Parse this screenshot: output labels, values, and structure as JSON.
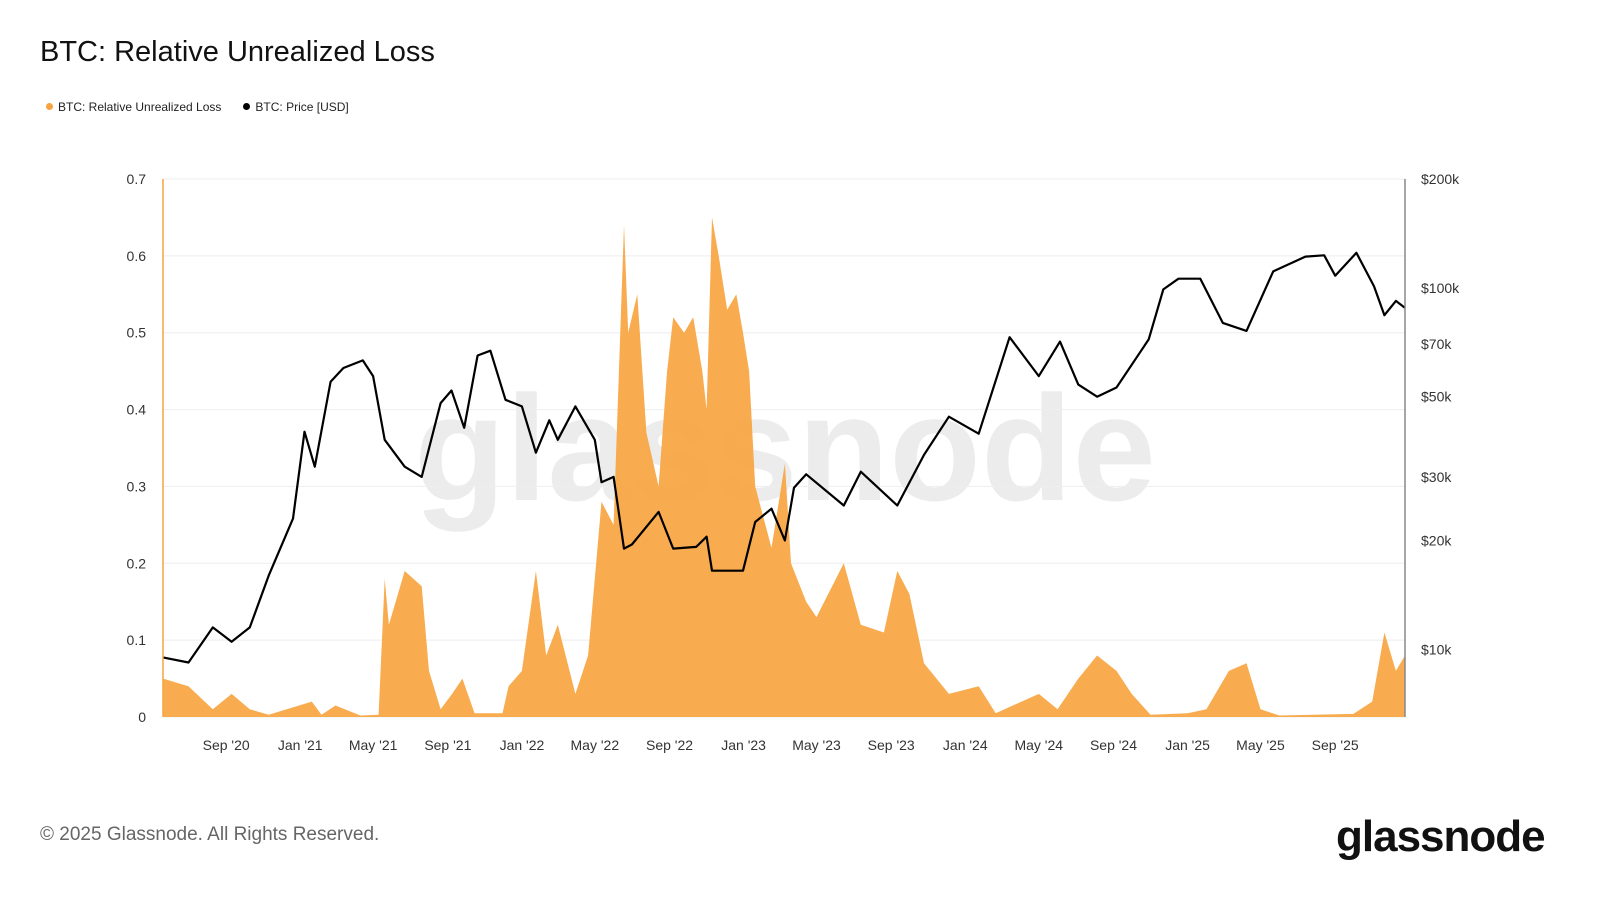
{
  "title": "BTC: Relative Unrealized Loss",
  "footer": "© 2025 Glassnode. All Rights Reserved.",
  "logo": "glassnode",
  "watermark": "glassnode",
  "chart_data": {
    "type": "area+line",
    "title": "BTC: Relative Unrealized Loss",
    "legend_placement": "top-left",
    "grid": true,
    "x_range": [
      "2020-05-20",
      "2025-12-25"
    ],
    "x_ticks": [
      [
        "2020-09-01",
        "Sep '20"
      ],
      [
        "2021-01-01",
        "Jan '21"
      ],
      [
        "2021-05-01",
        "May '21"
      ],
      [
        "2021-09-01",
        "Sep '21"
      ],
      [
        "2022-01-01",
        "Jan '22"
      ],
      [
        "2022-05-01",
        "May '22"
      ],
      [
        "2022-09-01",
        "Sep '22"
      ],
      [
        "2023-01-01",
        "Jan '23"
      ],
      [
        "2023-05-01",
        "May '23"
      ],
      [
        "2023-09-01",
        "Sep '23"
      ],
      [
        "2024-01-01",
        "Jan '24"
      ],
      [
        "2024-05-01",
        "May '24"
      ],
      [
        "2024-09-01",
        "Sep '24"
      ],
      [
        "2025-01-01",
        "Jan '25"
      ],
      [
        "2025-05-01",
        "May '25"
      ],
      [
        "2025-09-01",
        "Sep '25"
      ]
    ],
    "y_left": {
      "range": [
        0,
        0.7
      ],
      "ticks": [
        0,
        0.1,
        0.2,
        0.3,
        0.4,
        0.5,
        0.6,
        0.7
      ],
      "labels": [
        "0",
        "0.1",
        "0.2",
        "0.3",
        "0.4",
        "0.5",
        "0.6",
        "0.7"
      ]
    },
    "y_right": {
      "scale": "log",
      "range": [
        6500,
        200000
      ],
      "ticks": [
        10000,
        20000,
        30000,
        50000,
        70000,
        100000,
        200000
      ],
      "labels": [
        "$10k",
        "$20k",
        "$30k",
        "$50k",
        "$70k",
        "$100k",
        "$200k"
      ]
    },
    "series": [
      {
        "name": "BTC: Relative Unrealized Loss",
        "color": "#f7a440",
        "axis": "left",
        "type": "area",
        "points": [
          [
            "2020-05-20",
            0.05
          ],
          [
            "2020-07-01",
            0.04
          ],
          [
            "2020-08-10",
            0.01
          ],
          [
            "2020-09-10",
            0.03
          ],
          [
            "2020-10-10",
            0.01
          ],
          [
            "2020-11-10",
            0.003
          ],
          [
            "2021-01-20",
            0.02
          ],
          [
            "2021-02-05",
            0.003
          ],
          [
            "2021-02-28",
            0.015
          ],
          [
            "2021-04-10",
            0.002
          ],
          [
            "2021-05-10",
            0.003
          ],
          [
            "2021-05-20",
            0.18
          ],
          [
            "2021-05-27",
            0.12
          ],
          [
            "2021-06-22",
            0.19
          ],
          [
            "2021-07-20",
            0.17
          ],
          [
            "2021-08-01",
            0.06
          ],
          [
            "2021-08-20",
            0.01
          ],
          [
            "2021-09-08",
            0.03
          ],
          [
            "2021-09-25",
            0.05
          ],
          [
            "2021-10-15",
            0.005
          ],
          [
            "2021-11-30",
            0.005
          ],
          [
            "2021-12-10",
            0.04
          ],
          [
            "2022-01-01",
            0.06
          ],
          [
            "2022-01-24",
            0.19
          ],
          [
            "2022-02-10",
            0.08
          ],
          [
            "2022-03-01",
            0.12
          ],
          [
            "2022-03-30",
            0.03
          ],
          [
            "2022-04-20",
            0.08
          ],
          [
            "2022-05-12",
            0.28
          ],
          [
            "2022-06-01",
            0.25
          ],
          [
            "2022-06-18",
            0.64
          ],
          [
            "2022-06-25",
            0.5
          ],
          [
            "2022-07-10",
            0.55
          ],
          [
            "2022-07-25",
            0.37
          ],
          [
            "2022-08-14",
            0.3
          ],
          [
            "2022-08-28",
            0.45
          ],
          [
            "2022-09-07",
            0.52
          ],
          [
            "2022-09-25",
            0.5
          ],
          [
            "2022-10-10",
            0.52
          ],
          [
            "2022-10-25",
            0.45
          ],
          [
            "2022-11-01",
            0.4
          ],
          [
            "2022-11-10",
            0.65
          ],
          [
            "2022-11-21",
            0.6
          ],
          [
            "2022-12-05",
            0.53
          ],
          [
            "2022-12-20",
            0.55
          ],
          [
            "2022-12-31",
            0.5
          ],
          [
            "2023-01-10",
            0.45
          ],
          [
            "2023-01-20",
            0.3
          ],
          [
            "2023-02-16",
            0.22
          ],
          [
            "2023-03-10",
            0.33
          ],
          [
            "2023-03-20",
            0.2
          ],
          [
            "2023-04-14",
            0.15
          ],
          [
            "2023-05-01",
            0.13
          ],
          [
            "2023-06-15",
            0.2
          ],
          [
            "2023-07-13",
            0.12
          ],
          [
            "2023-08-20",
            0.11
          ],
          [
            "2023-09-11",
            0.19
          ],
          [
            "2023-10-01",
            0.16
          ],
          [
            "2023-10-25",
            0.07
          ],
          [
            "2023-12-05",
            0.03
          ],
          [
            "2024-01-23",
            0.04
          ],
          [
            "2024-02-20",
            0.005
          ],
          [
            "2024-05-01",
            0.03
          ],
          [
            "2024-06-01",
            0.01
          ],
          [
            "2024-07-05",
            0.05
          ],
          [
            "2024-08-05",
            0.08
          ],
          [
            "2024-09-06",
            0.06
          ],
          [
            "2024-10-01",
            0.03
          ],
          [
            "2024-11-01",
            0.003
          ],
          [
            "2025-01-01",
            0.005
          ],
          [
            "2025-02-01",
            0.01
          ],
          [
            "2025-03-10",
            0.06
          ],
          [
            "2025-04-08",
            0.07
          ],
          [
            "2025-05-01",
            0.01
          ],
          [
            "2025-06-01",
            0.002
          ],
          [
            "2025-10-01",
            0.004
          ],
          [
            "2025-11-01",
            0.02
          ],
          [
            "2025-11-21",
            0.11
          ],
          [
            "2025-12-10",
            0.06
          ],
          [
            "2025-12-25",
            0.08
          ]
        ]
      },
      {
        "name": "BTC: Price [USD]",
        "color": "#000000",
        "axis": "right",
        "type": "line",
        "points": [
          [
            "2020-05-20",
            9500
          ],
          [
            "2020-07-01",
            9200
          ],
          [
            "2020-08-10",
            11500
          ],
          [
            "2020-09-10",
            10500
          ],
          [
            "2020-10-10",
            11500
          ],
          [
            "2020-11-10",
            16000
          ],
          [
            "2020-12-20",
            23000
          ],
          [
            "2021-01-08",
            40000
          ],
          [
            "2021-01-25",
            32000
          ],
          [
            "2021-02-20",
            55000
          ],
          [
            "2021-03-13",
            60000
          ],
          [
            "2021-04-14",
            63000
          ],
          [
            "2021-05-01",
            57000
          ],
          [
            "2021-05-20",
            38000
          ],
          [
            "2021-06-22",
            32000
          ],
          [
            "2021-07-20",
            30000
          ],
          [
            "2021-08-20",
            48000
          ],
          [
            "2021-09-07",
            52000
          ],
          [
            "2021-09-28",
            41000
          ],
          [
            "2021-10-20",
            65000
          ],
          [
            "2021-11-10",
            67000
          ],
          [
            "2021-12-05",
            49000
          ],
          [
            "2022-01-01",
            47000
          ],
          [
            "2022-01-24",
            35000
          ],
          [
            "2022-02-15",
            43000
          ],
          [
            "2022-03-01",
            38000
          ],
          [
            "2022-03-30",
            47000
          ],
          [
            "2022-05-01",
            38000
          ],
          [
            "2022-05-12",
            29000
          ],
          [
            "2022-06-01",
            30000
          ],
          [
            "2022-06-18",
            19000
          ],
          [
            "2022-07-01",
            19500
          ],
          [
            "2022-08-14",
            24000
          ],
          [
            "2022-09-07",
            19000
          ],
          [
            "2022-10-15",
            19200
          ],
          [
            "2022-11-01",
            20500
          ],
          [
            "2022-11-10",
            16500
          ],
          [
            "2022-12-31",
            16500
          ],
          [
            "2023-01-20",
            22500
          ],
          [
            "2023-02-16",
            24500
          ],
          [
            "2023-03-10",
            20000
          ],
          [
            "2023-03-25",
            28000
          ],
          [
            "2023-04-14",
            30500
          ],
          [
            "2023-06-15",
            25000
          ],
          [
            "2023-07-13",
            31000
          ],
          [
            "2023-09-11",
            25000
          ],
          [
            "2023-10-25",
            34500
          ],
          [
            "2023-12-05",
            44000
          ],
          [
            "2024-01-23",
            39500
          ],
          [
            "2024-03-14",
            73000
          ],
          [
            "2024-05-01",
            57000
          ],
          [
            "2024-06-05",
            71000
          ],
          [
            "2024-07-05",
            54000
          ],
          [
            "2024-08-05",
            50000
          ],
          [
            "2024-09-06",
            53000
          ],
          [
            "2024-10-29",
            72000
          ],
          [
            "2024-11-22",
            99000
          ],
          [
            "2024-12-17",
            106000
          ],
          [
            "2025-01-22",
            106000
          ],
          [
            "2025-02-28",
            80000
          ],
          [
            "2025-04-08",
            76000
          ],
          [
            "2025-05-22",
            111000
          ],
          [
            "2025-07-14",
            122000
          ],
          [
            "2025-08-14",
            123000
          ],
          [
            "2025-09-01",
            108000
          ],
          [
            "2025-10-06",
            125000
          ],
          [
            "2025-11-04",
            101000
          ],
          [
            "2025-11-21",
            84000
          ],
          [
            "2025-12-10",
            92000
          ],
          [
            "2025-12-25",
            88000
          ]
        ]
      }
    ]
  }
}
